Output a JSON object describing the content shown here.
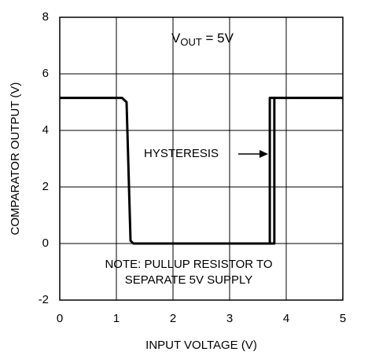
{
  "chart_data": {
    "type": "line",
    "x_label": "INPUT VOLTAGE (V)",
    "y_label": "COMPARATOR OUTPUT (V)",
    "xlim": [
      0,
      5
    ],
    "xticks": [
      0,
      1,
      2,
      3,
      4,
      5
    ],
    "ylim": [
      -2,
      8
    ],
    "yticks": [
      -2,
      0,
      2,
      4,
      6,
      8
    ],
    "grid": true,
    "series": [
      {
        "color": "#000000",
        "x": [
          0,
          1.1,
          1.18,
          1.25,
          1.3,
          3.79,
          3.79,
          5
        ],
        "values": [
          5.15,
          5.15,
          5.0,
          0.1,
          0,
          0,
          5.15,
          5.15
        ]
      },
      {
        "color": "#000000",
        "x": [
          3.66,
          3.71,
          3.71,
          3.79
        ],
        "values": [
          0,
          0,
          5.15,
          5.15
        ]
      }
    ],
    "annotations": {
      "vout": {
        "main": "V",
        "sub": "OUT",
        "rest": " = 5V"
      },
      "hysteresis": "HYSTERESIS",
      "note_line1": "NOTE: PULLUP RESISTOR TO",
      "note_line2": "SEPARATE 5V SUPPLY"
    }
  }
}
